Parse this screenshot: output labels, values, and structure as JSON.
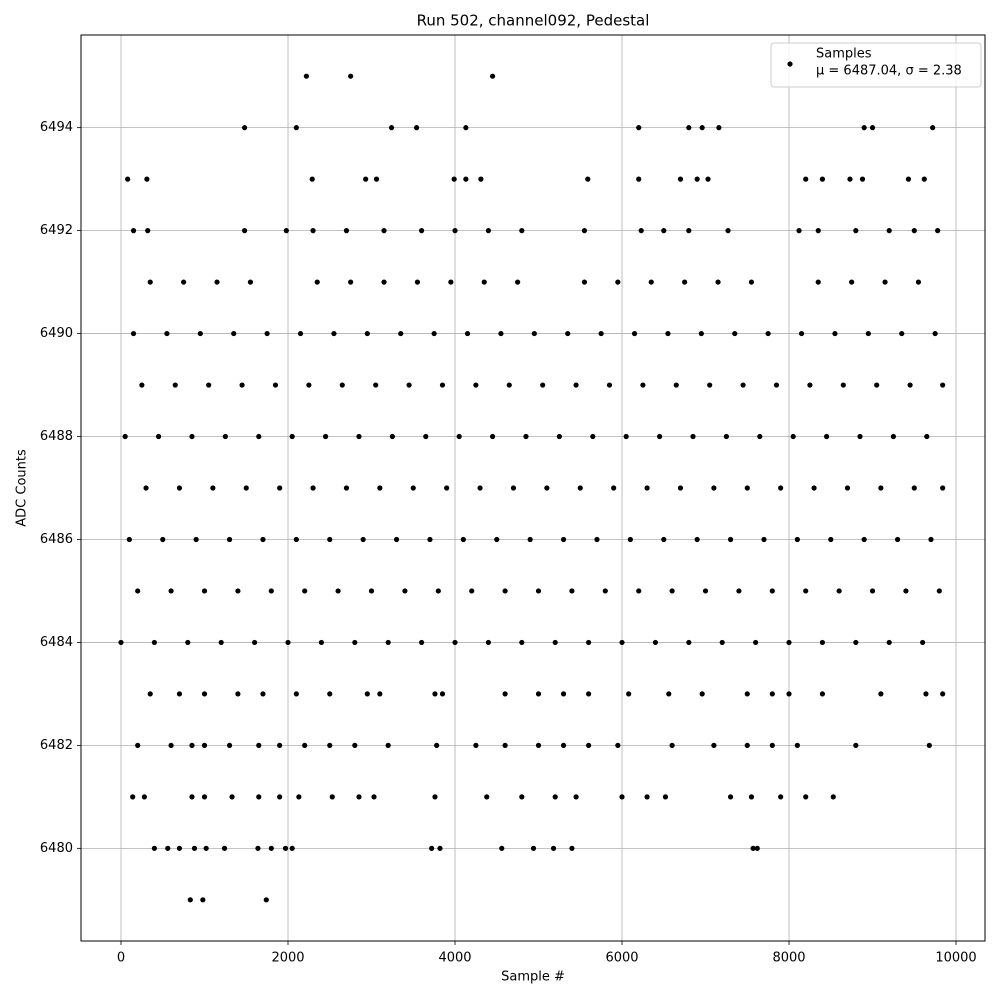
{
  "chart_data": {
    "type": "scatter",
    "title": "Run 502, channel092, Pedestal",
    "x_label": "Sample #",
    "y_label": "ADC Counts",
    "legend": "upper right",
    "legend_note": "μ = 6487.04, σ = 2.38",
    "grid": true,
    "xlim": [
      -479,
      10347
    ],
    "ylim": [
      6478.2,
      6495.8
    ],
    "xticks": [
      0,
      2000,
      4000,
      6000,
      8000,
      10000
    ],
    "yticks": [
      6480,
      6482,
      6484,
      6486,
      6488,
      6490,
      6492,
      6494
    ],
    "x": [
      0,
      400,
      800,
      1200,
      1600,
      2000,
      2400,
      2800,
      3200,
      3600,
      4000,
      4400,
      4800,
      5200,
      5600,
      6000,
      6400,
      6800,
      7200,
      7600,
      8000,
      8400,
      8800,
      9200,
      9600,
      200,
      600,
      1000,
      1400,
      1800,
      2200,
      2600,
      3000,
      3400,
      3800,
      4200,
      4600,
      5000,
      5400,
      5800,
      6200,
      6600,
      7000,
      7400,
      7800,
      8200,
      8600,
      9000,
      9400,
      9800,
      100,
      500,
      900,
      1300,
      1700,
      2100,
      2500,
      2900,
      3300,
      3700,
      4100,
      4500,
      4900,
      5300,
      5700,
      6100,
      6500,
      6900,
      7300,
      7700,
      8100,
      8500,
      8900,
      9300,
      9700,
      300,
      700,
      1100,
      1500,
      1900,
      2300,
      2700,
      3100,
      3500,
      3900,
      4300,
      4700,
      5100,
      5500,
      5900,
      6300,
      6700,
      7100,
      7500,
      7900,
      8300,
      8700,
      9100,
      9500,
      9840,
      50,
      450,
      850,
      1250,
      1650,
      2050,
      2450,
      2850,
      3250,
      3650,
      4050,
      4450,
      4850,
      5250,
      5650,
      6050,
      6450,
      6850,
      7250,
      7650,
      8050,
      8450,
      8850,
      9250,
      9650,
      250,
      650,
      1050,
      1450,
      1850,
      2250,
      2650,
      3050,
      3450,
      3850,
      4250,
      4650,
      5050,
      5450,
      5850,
      6250,
      6650,
      7050,
      7450,
      7850,
      8250,
      8650,
      9050,
      9450,
      9840,
      150,
      550,
      950,
      1350,
      1750,
      2150,
      2550,
      2950,
      3350,
      3750,
      4150,
      4550,
      4950,
      5350,
      5750,
      6150,
      6550,
      6950,
      7350,
      7750,
      8150,
      8550,
      8950,
      9350,
      9750,
      350,
      750,
      1150,
      1550,
      2350,
      2750,
      3150,
      3550,
      3950,
      4350,
      4750,
      5550,
      5950,
      6350,
      6750,
      7150,
      7550,
      8350,
      8750,
      9150,
      9550,
      2220,
      2750,
      4450,
      1480,
      2100,
      3240,
      3540,
      4130,
      6200,
      6800,
      6960,
      7160,
      8900,
      9000,
      9720,
      80,
      310,
      2290,
      2930,
      3060,
      3990,
      4130,
      4310,
      5590,
      6200,
      6700,
      6900,
      7030,
      8200,
      8400,
      8730,
      8880,
      9430,
      9620,
      150,
      320,
      1480,
      1980,
      2300,
      2700,
      3150,
      3600,
      4000,
      4400,
      4800,
      5550,
      6230,
      6500,
      6800,
      7270,
      8120,
      8350,
      8800,
      9200,
      9500,
      9780,
      350,
      700,
      1000,
      1400,
      1700,
      2100,
      2500,
      2950,
      3100,
      3760,
      3850,
      4600,
      5000,
      5300,
      5600,
      6080,
      6560,
      6960,
      7500,
      7800,
      8000,
      8400,
      9100,
      9640,
      9840,
      200,
      600,
      850,
      1000,
      1300,
      1650,
      1900,
      2200,
      2500,
      2800,
      3200,
      3780,
      4250,
      4600,
      5000,
      5300,
      5600,
      5950,
      6600,
      7100,
      7500,
      7800,
      8100,
      8800,
      9680,
      140,
      280,
      850,
      1000,
      1330,
      1650,
      1900,
      2130,
      2530,
      2850,
      3030,
      3760,
      4380,
      4800,
      5200,
      5450,
      6000,
      6300,
      6520,
      7300,
      7550,
      7900,
      8200,
      8530,
      400,
      560,
      700,
      880,
      1020,
      1240,
      1640,
      1800,
      1970,
      2050,
      3720,
      3820,
      4560,
      4940,
      5180,
      5400,
      7570,
      7620,
      830,
      980,
      1740
    ],
    "series": [
      {
        "name": "Samples",
        "color": "#000000",
        "values": [
          6484,
          6484,
          6484,
          6484,
          6484,
          6484,
          6484,
          6484,
          6484,
          6484,
          6484,
          6484,
          6484,
          6484,
          6484,
          6484,
          6484,
          6484,
          6484,
          6484,
          6484,
          6484,
          6484,
          6484,
          6484,
          6485,
          6485,
          6485,
          6485,
          6485,
          6485,
          6485,
          6485,
          6485,
          6485,
          6485,
          6485,
          6485,
          6485,
          6485,
          6485,
          6485,
          6485,
          6485,
          6485,
          6485,
          6485,
          6485,
          6485,
          6485,
          6486,
          6486,
          6486,
          6486,
          6486,
          6486,
          6486,
          6486,
          6486,
          6486,
          6486,
          6486,
          6486,
          6486,
          6486,
          6486,
          6486,
          6486,
          6486,
          6486,
          6486,
          6486,
          6486,
          6486,
          6486,
          6487,
          6487,
          6487,
          6487,
          6487,
          6487,
          6487,
          6487,
          6487,
          6487,
          6487,
          6487,
          6487,
          6487,
          6487,
          6487,
          6487,
          6487,
          6487,
          6487,
          6487,
          6487,
          6487,
          6487,
          6487,
          6488,
          6488,
          6488,
          6488,
          6488,
          6488,
          6488,
          6488,
          6488,
          6488,
          6488,
          6488,
          6488,
          6488,
          6488,
          6488,
          6488,
          6488,
          6488,
          6488,
          6488,
          6488,
          6488,
          6488,
          6488,
          6489,
          6489,
          6489,
          6489,
          6489,
          6489,
          6489,
          6489,
          6489,
          6489,
          6489,
          6489,
          6489,
          6489,
          6489,
          6489,
          6489,
          6489,
          6489,
          6489,
          6489,
          6489,
          6489,
          6489,
          6489,
          6490,
          6490,
          6490,
          6490,
          6490,
          6490,
          6490,
          6490,
          6490,
          6490,
          6490,
          6490,
          6490,
          6490,
          6490,
          6490,
          6490,
          6490,
          6490,
          6490,
          6490,
          6490,
          6490,
          6490,
          6490,
          6491,
          6491,
          6491,
          6491,
          6491,
          6491,
          6491,
          6491,
          6491,
          6491,
          6491,
          6491,
          6491,
          6491,
          6491,
          6491,
          6491,
          6491,
          6491,
          6491,
          6491,
          6495,
          6495,
          6495,
          6494,
          6494,
          6494,
          6494,
          6494,
          6494,
          6494,
          6494,
          6494,
          6494,
          6494,
          6494,
          6493,
          6493,
          6493,
          6493,
          6493,
          6493,
          6493,
          6493,
          6493,
          6493,
          6493,
          6493,
          6493,
          6493,
          6493,
          6493,
          6493,
          6493,
          6493,
          6492,
          6492,
          6492,
          6492,
          6492,
          6492,
          6492,
          6492,
          6492,
          6492,
          6492,
          6492,
          6492,
          6492,
          6492,
          6492,
          6492,
          6492,
          6492,
          6492,
          6492,
          6492,
          6483,
          6483,
          6483,
          6483,
          6483,
          6483,
          6483,
          6483,
          6483,
          6483,
          6483,
          6483,
          6483,
          6483,
          6483,
          6483,
          6483,
          6483,
          6483,
          6483,
          6483,
          6483,
          6483,
          6483,
          6483,
          6482,
          6482,
          6482,
          6482,
          6482,
          6482,
          6482,
          6482,
          6482,
          6482,
          6482,
          6482,
          6482,
          6482,
          6482,
          6482,
          6482,
          6482,
          6482,
          6482,
          6482,
          6482,
          6482,
          6482,
          6482,
          6481,
          6481,
          6481,
          6481,
          6481,
          6481,
          6481,
          6481,
          6481,
          6481,
          6481,
          6481,
          6481,
          6481,
          6481,
          6481,
          6481,
          6481,
          6481,
          6481,
          6481,
          6481,
          6481,
          6481,
          6480,
          6480,
          6480,
          6480,
          6480,
          6480,
          6480,
          6480,
          6480,
          6480,
          6480,
          6480,
          6480,
          6480,
          6480,
          6480,
          6480,
          6480,
          6479,
          6479,
          6479
        ]
      }
    ]
  }
}
